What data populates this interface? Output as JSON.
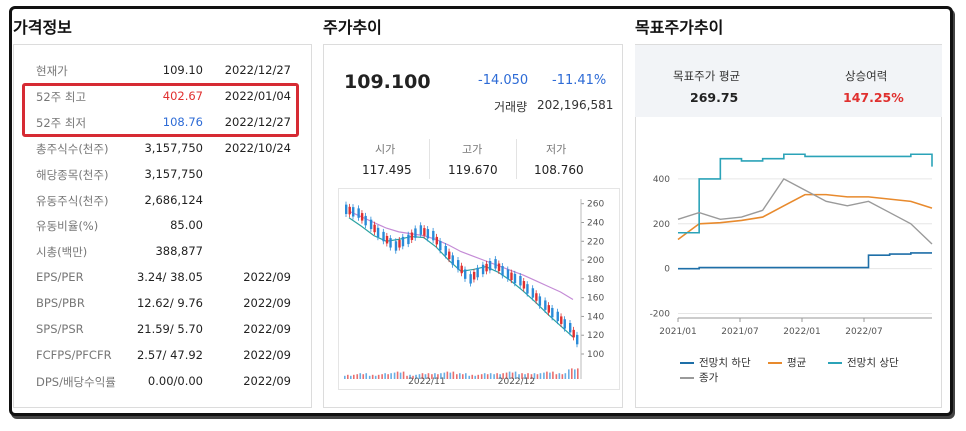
{
  "sections": {
    "price_info_title": "가격정보",
    "stock_trend_title": "주가추이",
    "target_trend_title": "목표주가추이"
  },
  "price_info": {
    "rows": [
      {
        "label": "현재가",
        "value": "109.10",
        "date": "2022/12/27"
      },
      {
        "label": "52주 최고",
        "value": "402.67",
        "date": "2022/01/04"
      },
      {
        "label": "52주 최저",
        "value": "108.76",
        "date": "2022/12/27"
      },
      {
        "label": "총주식수(천주)",
        "value": "3,157,750",
        "date": "2022/10/24"
      },
      {
        "label": "해당종목(천주)",
        "value": "3,157,750",
        "date": ""
      },
      {
        "label": "유동주식(천주)",
        "value": "2,686,124",
        "date": ""
      },
      {
        "label": "유동비율(%)",
        "value": "85.00",
        "date": ""
      },
      {
        "label": "시총(백만)",
        "value": "388,877",
        "date": ""
      },
      {
        "label": "EPS/PER",
        "value": "3.24/ 38.05",
        "date": "2022/09"
      },
      {
        "label": "BPS/PBR",
        "value": "12.62/ 9.76",
        "date": "2022/09"
      },
      {
        "label": "SPS/PSR",
        "value": "21.59/ 5.70",
        "date": "2022/09"
      },
      {
        "label": "FCFPS/PFCFR",
        "value": "2.57/ 47.92",
        "date": "2022/09"
      },
      {
        "label": "DPS/배당수익률",
        "value": "0.00/0.00",
        "date": "2022/09"
      }
    ],
    "colors": {
      "high": "#e0302f",
      "low": "#2d6bd6",
      "highlight_border": "#d62a33"
    }
  },
  "stock_trend": {
    "price": "109.100",
    "change": "-14.050",
    "change_pct": "-11.41%",
    "volume_label": "거래량",
    "volume": "202,196,581",
    "open_label": "시가",
    "open": "117.495",
    "high_label": "고가",
    "high": "119.670",
    "low_label": "저가",
    "low": "108.760"
  },
  "target": {
    "avg_label": "목표주가 평균",
    "avg_value": "269.75",
    "upside_label": "상승여력",
    "upside_value": "147.25%"
  },
  "chart_data": [
    {
      "type": "line",
      "x": [
        "2022/10/24",
        "2022/10/28",
        "2022/11/01",
        "2022/11/04",
        "2022/11/08",
        "2022/11/11",
        "2022/11/15",
        "2022/11/18",
        "2022/11/22",
        "2022/11/25",
        "2022/11/29",
        "2022/12/02",
        "2022/12/06",
        "2022/12/09",
        "2022/12/13",
        "2022/12/16",
        "2022/12/20",
        "2022/12/23",
        "2022/12/27"
      ],
      "x_tick_labels": [
        "2022/11",
        "2022/12"
      ],
      "y_ticks": [
        100,
        120,
        140,
        160,
        180,
        200,
        220,
        240,
        260
      ],
      "ylim": [
        100,
        265
      ],
      "series": [
        {
          "name": "",
          "role": "close",
          "values": [
            250,
            238,
            225,
            215,
            222,
            232,
            226,
            210,
            195,
            180,
            190,
            196,
            185,
            178,
            165,
            152,
            140,
            128,
            109
          ]
        },
        {
          "name": "",
          "role": "moving-average-short",
          "values": [
            245,
            236,
            226,
            220,
            222,
            225,
            224,
            214,
            200,
            188,
            190,
            193,
            187,
            178,
            167,
            155,
            142,
            130,
            118
          ]
        },
        {
          "name": "",
          "role": "moving-average-long",
          "values": [
            252,
            246,
            240,
            234,
            230,
            228,
            226,
            222,
            216,
            209,
            204,
            199,
            194,
            189,
            184,
            178,
            172,
            166,
            158
          ]
        }
      ],
      "volume": [
        2,
        3,
        2,
        3,
        4,
        2,
        3,
        3,
        4,
        3,
        2,
        3,
        3,
        4,
        3,
        3,
        4,
        3,
        6
      ],
      "colors": {
        "up": "#e0302f",
        "down": "#2a8bd8",
        "ma_short": "#2ba3a3",
        "ma_long": "#c48bd6"
      },
      "grid": false,
      "axis_side": "right"
    },
    {
      "type": "line",
      "x_tick_labels": [
        "2021/01",
        "2021/07",
        "2022/01",
        "2022/07"
      ],
      "y_ticks": [
        -200,
        0,
        200,
        400
      ],
      "ylim": [
        -220,
        520
      ],
      "x": [
        "2021/01",
        "2021/03",
        "2021/05",
        "2021/07",
        "2021/09",
        "2021/11",
        "2022/01",
        "2022/03",
        "2022/05",
        "2022/07",
        "2022/09",
        "2022/11",
        "2022/12"
      ],
      "series": [
        {
          "name": "전망치 하단",
          "values": [
            0,
            5,
            5,
            5,
            5,
            5,
            5,
            5,
            5,
            60,
            65,
            70,
            70
          ],
          "color": "#1e6fa8"
        },
        {
          "name": "평균",
          "values": [
            130,
            200,
            205,
            215,
            230,
            280,
            330,
            330,
            320,
            320,
            310,
            300,
            270
          ],
          "color": "#e88a2d"
        },
        {
          "name": "전망치 상단",
          "values": [
            160,
            400,
            490,
            480,
            490,
            510,
            500,
            500,
            500,
            500,
            500,
            510,
            455
          ],
          "color": "#2ba3b8"
        },
        {
          "name": "종가",
          "values": [
            220,
            250,
            220,
            230,
            260,
            400,
            350,
            300,
            280,
            300,
            250,
            200,
            110
          ],
          "color": "#9a9a9a"
        }
      ],
      "legend_placement": "bottom",
      "grid": true
    }
  ]
}
